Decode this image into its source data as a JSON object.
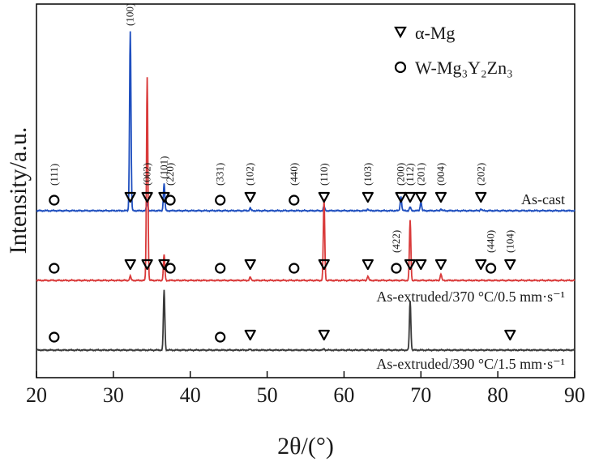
{
  "chart_data": {
    "type": "line",
    "xlabel": "2θ/(°)",
    "ylabel": "Intensity/a.u.",
    "xlim": [
      20,
      90
    ],
    "xticks": [
      20,
      30,
      40,
      50,
      60,
      70,
      80,
      90
    ],
    "yticks": [],
    "grid": false,
    "legend_position": "top-right",
    "legend": [
      {
        "marker": "triangle",
        "label": "α-Mg"
      },
      {
        "marker": "circle",
        "label": "W-Mg₃Y₂Zn₃"
      }
    ],
    "series": [
      {
        "name": "As-cast",
        "color": "#1f4fbf",
        "peaks": [
          {
            "x": 32.2,
            "h": 1.0
          },
          {
            "x": 34.4,
            "h": 0.05
          },
          {
            "x": 36.6,
            "h": 0.15
          },
          {
            "x": 47.8,
            "h": 0.015
          },
          {
            "x": 57.4,
            "h": 0.025
          },
          {
            "x": 63.1,
            "h": 0.01
          },
          {
            "x": 67.4,
            "h": 0.08
          },
          {
            "x": 68.6,
            "h": 0.02
          },
          {
            "x": 70.0,
            "h": 0.05
          },
          {
            "x": 72.6,
            "h": 0.01
          },
          {
            "x": 77.8,
            "h": 0.01
          }
        ],
        "triangles": [
          32.2,
          34.4,
          36.6,
          47.8,
          57.4,
          63.1,
          67.4,
          68.6,
          70.0,
          72.6,
          77.8
        ],
        "circles": [
          22.3,
          37.4,
          43.9,
          53.5
        ]
      },
      {
        "name": "As-extruded/370 °C/0.5 mm·s⁻¹",
        "color": "#d93a3a",
        "peaks": [
          {
            "x": 32.2,
            "h": 0.02
          },
          {
            "x": 34.4,
            "h": 0.95
          },
          {
            "x": 36.6,
            "h": 0.12
          },
          {
            "x": 47.8,
            "h": 0.015
          },
          {
            "x": 57.4,
            "h": 0.38
          },
          {
            "x": 63.1,
            "h": 0.02
          },
          {
            "x": 68.6,
            "h": 0.28
          },
          {
            "x": 72.6,
            "h": 0.03
          }
        ],
        "triangles": [
          32.2,
          34.4,
          36.6,
          47.8,
          57.4,
          63.1,
          68.6,
          70.0,
          72.6,
          77.8,
          81.6
        ],
        "circles": [
          22.3,
          37.4,
          43.9,
          53.5,
          66.8,
          79.1
        ]
      },
      {
        "name": "As-extruded/390 °C/1.5 mm·s⁻¹",
        "color": "#3a3a3a",
        "peaks": [
          {
            "x": 36.6,
            "h": 1.0
          },
          {
            "x": 47.8,
            "h": 0.01
          },
          {
            "x": 57.4,
            "h": 0.02
          },
          {
            "x": 68.6,
            "h": 0.82
          }
        ],
        "triangles": [
          47.8,
          57.4,
          81.6
        ],
        "circles": [
          22.3,
          43.9
        ]
      }
    ],
    "annotations": [
      {
        "text": "(100)",
        "x": 32.2,
        "series": 0
      },
      {
        "text": "(111)",
        "x": 22.3,
        "series": 0
      },
      {
        "text": "(002)",
        "x": 34.4,
        "series": 0
      },
      {
        "text": "(101)",
        "x": 36.6,
        "series": 0
      },
      {
        "text": "(220)",
        "x": 37.4,
        "series": 0
      },
      {
        "text": "(331)",
        "x": 43.9,
        "series": 0
      },
      {
        "text": "(102)",
        "x": 47.8,
        "series": 0
      },
      {
        "text": "(440)",
        "x": 53.5,
        "series": 0
      },
      {
        "text": "(110)",
        "x": 57.4,
        "series": 0
      },
      {
        "text": "(103)",
        "x": 63.1,
        "series": 0
      },
      {
        "text": "(200)",
        "x": 67.4,
        "series": 0
      },
      {
        "text": "(112)",
        "x": 68.6,
        "series": 0
      },
      {
        "text": "(201)",
        "x": 70.0,
        "series": 0
      },
      {
        "text": "(004)",
        "x": 72.6,
        "series": 0
      },
      {
        "text": "(202)",
        "x": 77.8,
        "series": 0
      },
      {
        "text": "(422)",
        "x": 66.8,
        "series": 1
      },
      {
        "text": "(440)",
        "x": 79.1,
        "series": 1
      },
      {
        "text": "(104)",
        "x": 81.6,
        "series": 1
      }
    ]
  }
}
